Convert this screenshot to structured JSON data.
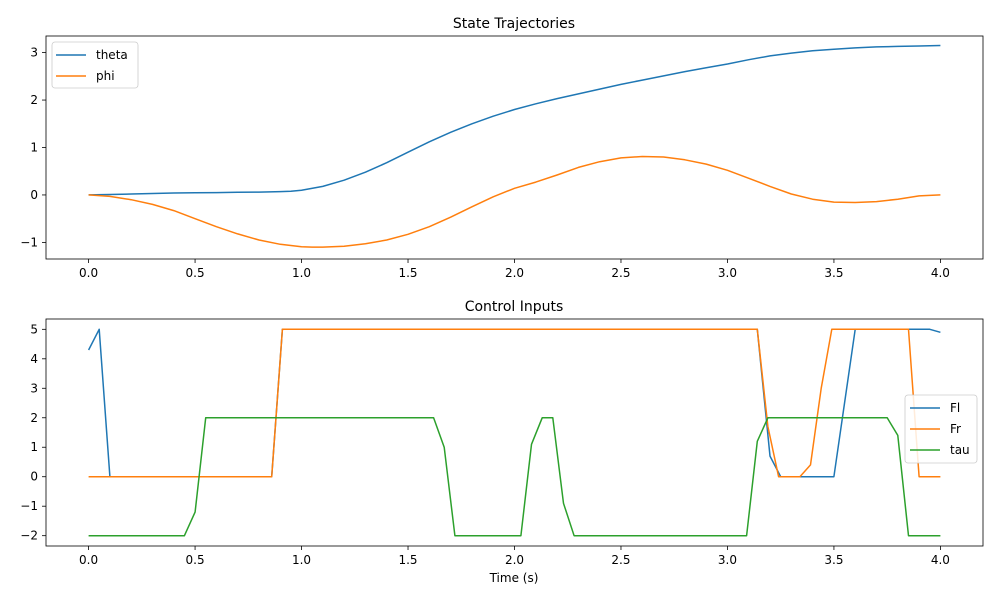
{
  "chart_data": [
    {
      "type": "line",
      "title": "State Trajectories",
      "xlabel": "",
      "ylabel": "",
      "xlim": [
        -0.2,
        4.2
      ],
      "ylim": [
        -1.35,
        3.35
      ],
      "xticks": [
        0.0,
        0.5,
        1.0,
        1.5,
        2.0,
        2.5,
        3.0,
        3.5,
        4.0
      ],
      "xtick_labels": [
        "0.0",
        "0.5",
        "1.0",
        "1.5",
        "2.0",
        "2.5",
        "3.0",
        "3.5",
        "4.0"
      ],
      "yticks": [
        -1,
        0,
        1,
        2,
        3
      ],
      "ytick_labels": [
        "−1",
        "0",
        "1",
        "2",
        "3"
      ],
      "legend_position": "top-left",
      "series": [
        {
          "name": "theta",
          "color": "#1f77b4",
          "points": [
            [
              0,
              0
            ],
            [
              0.1,
              0.01
            ],
            [
              0.2,
              0.02
            ],
            [
              0.3,
              0.03
            ],
            [
              0.4,
              0.04
            ],
            [
              0.5,
              0.045
            ],
            [
              0.6,
              0.05
            ],
            [
              0.7,
              0.055
            ],
            [
              0.8,
              0.06
            ],
            [
              0.9,
              0.07
            ],
            [
              0.95,
              0.08
            ],
            [
              1.0,
              0.1
            ],
            [
              1.1,
              0.18
            ],
            [
              1.2,
              0.31
            ],
            [
              1.3,
              0.48
            ],
            [
              1.4,
              0.68
            ],
            [
              1.5,
              0.9
            ],
            [
              1.6,
              1.12
            ],
            [
              1.7,
              1.32
            ],
            [
              1.8,
              1.5
            ],
            [
              1.9,
              1.66
            ],
            [
              2.0,
              1.8
            ],
            [
              2.1,
              1.92
            ],
            [
              2.2,
              2.03
            ],
            [
              2.3,
              2.13
            ],
            [
              2.4,
              2.23
            ],
            [
              2.5,
              2.33
            ],
            [
              2.6,
              2.42
            ],
            [
              2.7,
              2.51
            ],
            [
              2.8,
              2.6
            ],
            [
              2.9,
              2.68
            ],
            [
              3.0,
              2.76
            ],
            [
              3.1,
              2.85
            ],
            [
              3.2,
              2.93
            ],
            [
              3.3,
              2.99
            ],
            [
              3.4,
              3.04
            ],
            [
              3.5,
              3.07
            ],
            [
              3.6,
              3.1
            ],
            [
              3.7,
              3.12
            ],
            [
              3.8,
              3.13
            ],
            [
              3.9,
              3.14
            ],
            [
              4.0,
              3.15
            ]
          ]
        },
        {
          "name": "phi",
          "color": "#ff7f0e",
          "points": [
            [
              0,
              0
            ],
            [
              0.1,
              -0.03
            ],
            [
              0.2,
              -0.1
            ],
            [
              0.3,
              -0.2
            ],
            [
              0.4,
              -0.33
            ],
            [
              0.5,
              -0.5
            ],
            [
              0.6,
              -0.67
            ],
            [
              0.7,
              -0.82
            ],
            [
              0.8,
              -0.95
            ],
            [
              0.9,
              -1.04
            ],
            [
              1.0,
              -1.09
            ],
            [
              1.05,
              -1.1
            ],
            [
              1.1,
              -1.1
            ],
            [
              1.2,
              -1.08
            ],
            [
              1.3,
              -1.03
            ],
            [
              1.4,
              -0.95
            ],
            [
              1.5,
              -0.83
            ],
            [
              1.6,
              -0.67
            ],
            [
              1.7,
              -0.47
            ],
            [
              1.8,
              -0.25
            ],
            [
              1.9,
              -0.04
            ],
            [
              2.0,
              0.14
            ],
            [
              2.1,
              0.27
            ],
            [
              2.2,
              0.42
            ],
            [
              2.3,
              0.58
            ],
            [
              2.4,
              0.7
            ],
            [
              2.5,
              0.78
            ],
            [
              2.6,
              0.81
            ],
            [
              2.7,
              0.8
            ],
            [
              2.8,
              0.74
            ],
            [
              2.9,
              0.65
            ],
            [
              3.0,
              0.52
            ],
            [
              3.1,
              0.35
            ],
            [
              3.2,
              0.18
            ],
            [
              3.3,
              0.02
            ],
            [
              3.4,
              -0.09
            ],
            [
              3.5,
              -0.15
            ],
            [
              3.6,
              -0.16
            ],
            [
              3.7,
              -0.14
            ],
            [
              3.8,
              -0.09
            ],
            [
              3.9,
              -0.02
            ],
            [
              4.0,
              0
            ]
          ]
        }
      ]
    },
    {
      "type": "line",
      "title": "Control Inputs",
      "xlabel": "Time (s)",
      "ylabel": "",
      "xlim": [
        -0.2,
        4.2
      ],
      "ylim": [
        -2.35,
        5.35
      ],
      "xticks": [
        0.0,
        0.5,
        1.0,
        1.5,
        2.0,
        2.5,
        3.0,
        3.5,
        4.0
      ],
      "xtick_labels": [
        "0.0",
        "0.5",
        "1.0",
        "1.5",
        "2.0",
        "2.5",
        "3.0",
        "3.5",
        "4.0"
      ],
      "yticks": [
        -2,
        -1,
        0,
        1,
        2,
        3,
        4,
        5
      ],
      "ytick_labels": [
        "−2",
        "−1",
        "0",
        "1",
        "2",
        "3",
        "4",
        "5"
      ],
      "legend_position": "center-right",
      "series": [
        {
          "name": "Fl",
          "color": "#1f77b4",
          "points": [
            [
              0,
              4.3
            ],
            [
              0.05,
              5
            ],
            [
              0.1,
              0
            ],
            [
              0.86,
              0
            ],
            [
              0.91,
              5
            ],
            [
              3.14,
              5
            ],
            [
              3.2,
              0.7
            ],
            [
              3.25,
              0
            ],
            [
              3.5,
              0
            ],
            [
              3.6,
              5
            ],
            [
              3.95,
              5
            ],
            [
              4.0,
              4.9
            ]
          ]
        },
        {
          "name": "Fr",
          "color": "#ff7f0e",
          "points": [
            [
              0,
              0
            ],
            [
              0.86,
              0
            ],
            [
              0.91,
              5
            ],
            [
              3.14,
              5
            ],
            [
              3.19,
              1.7
            ],
            [
              3.24,
              0
            ],
            [
              3.34,
              0
            ],
            [
              3.39,
              0.4
            ],
            [
              3.44,
              3
            ],
            [
              3.49,
              5
            ],
            [
              3.85,
              5
            ],
            [
              3.9,
              0
            ],
            [
              4.0,
              0
            ]
          ]
        },
        {
          "name": "tau",
          "color": "#2ca02c",
          "points": [
            [
              0,
              -2
            ],
            [
              0.45,
              -2
            ],
            [
              0.5,
              -1.2
            ],
            [
              0.55,
              2
            ],
            [
              1.62,
              2
            ],
            [
              1.67,
              1
            ],
            [
              1.72,
              -2
            ],
            [
              2.03,
              -2
            ],
            [
              2.08,
              1.1
            ],
            [
              2.13,
              2
            ],
            [
              2.18,
              2
            ],
            [
              2.23,
              -0.9
            ],
            [
              2.28,
              -2
            ],
            [
              3.09,
              -2
            ],
            [
              3.14,
              1.2
            ],
            [
              3.19,
              2
            ],
            [
              3.75,
              2
            ],
            [
              3.8,
              1.4
            ],
            [
              3.85,
              -2
            ],
            [
              4.0,
              -2
            ]
          ]
        }
      ]
    }
  ]
}
